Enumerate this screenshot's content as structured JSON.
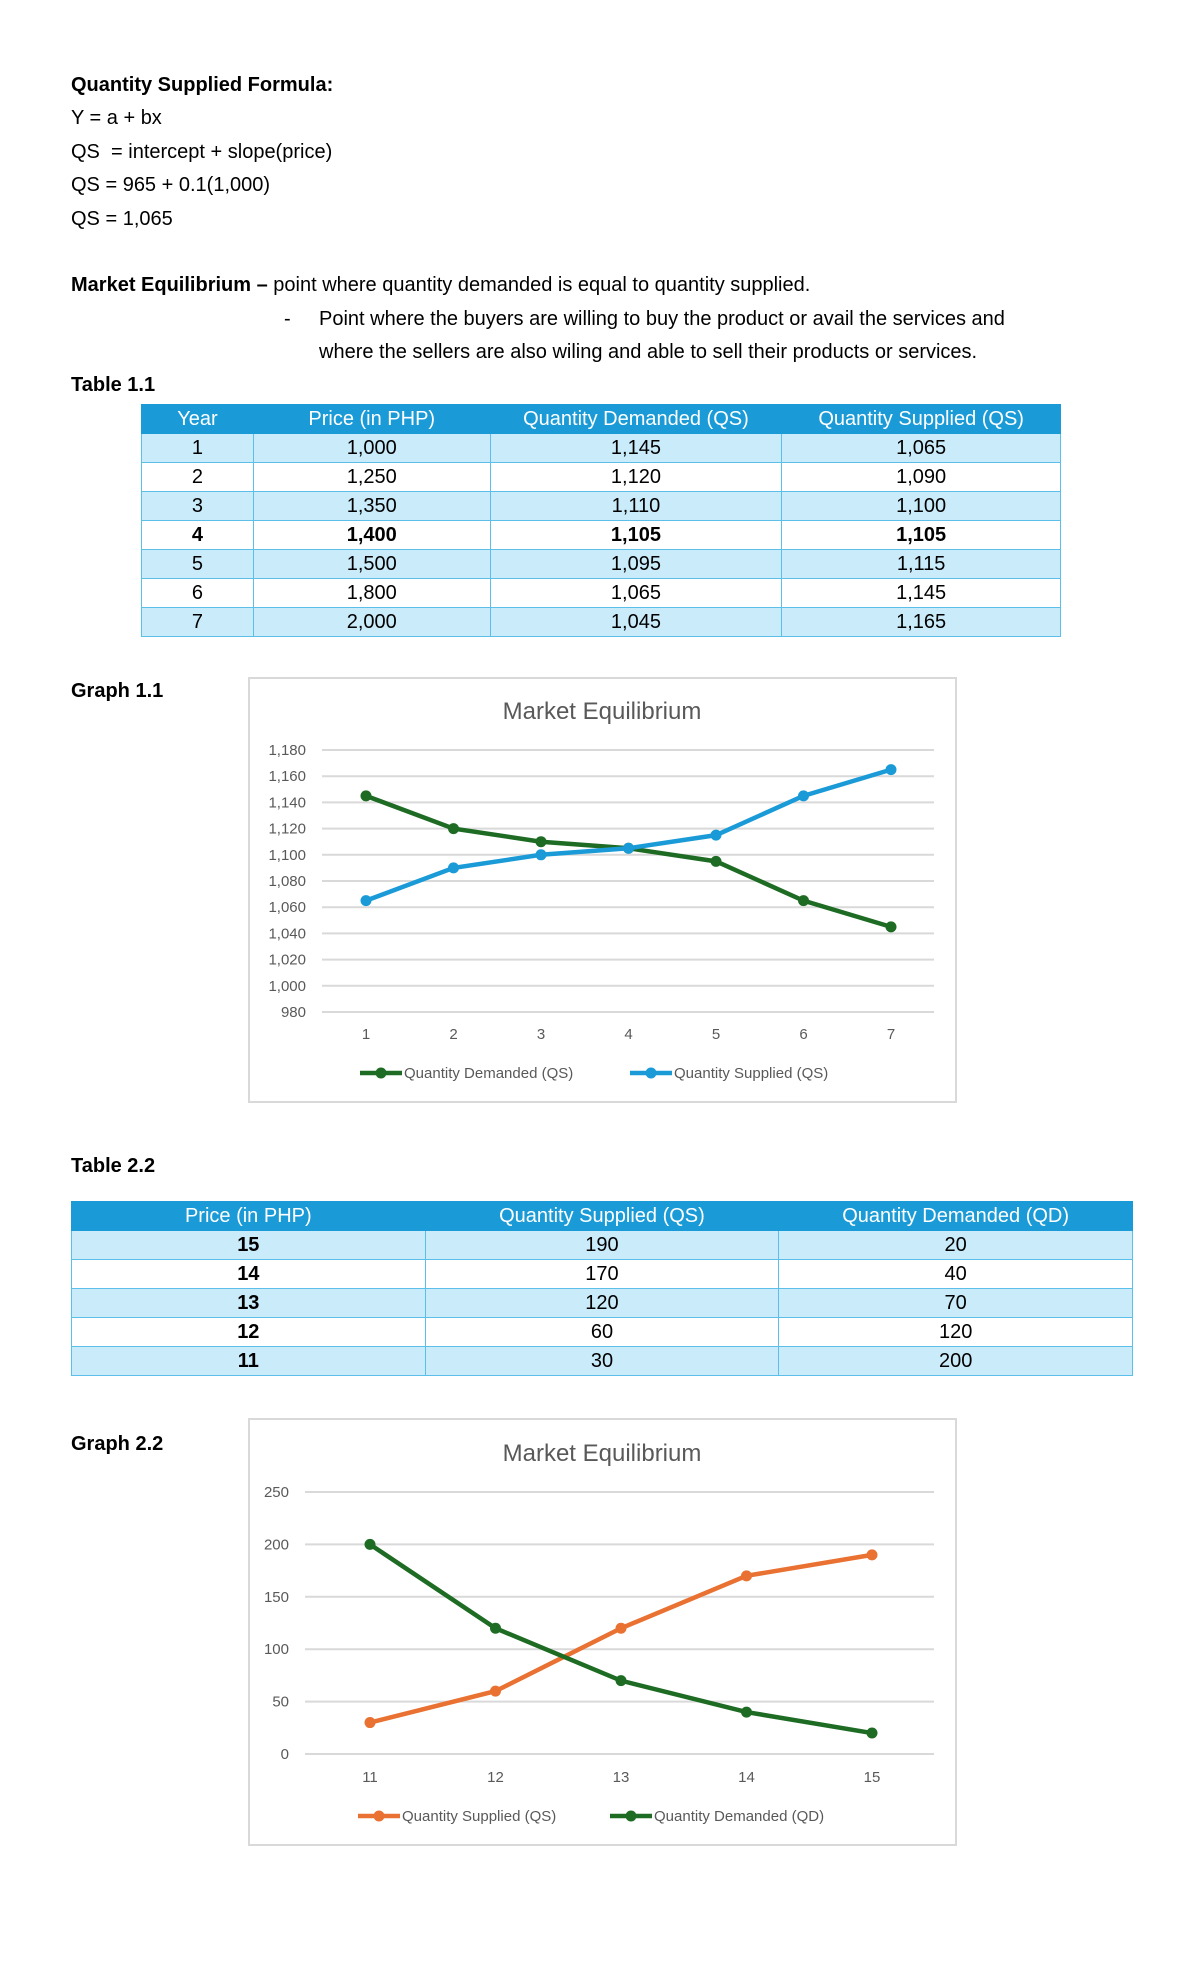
{
  "formula": {
    "heading": "Quantity Supplied Formula:",
    "lines": [
      "Y = a + bx",
      "QS  = intercept + slope(price)",
      "QS = 965 + 0.1(1,000)",
      "QS = 1,065"
    ]
  },
  "equilibrium": {
    "term": "Market Equilibrium –",
    "definition": " point where quantity demanded is equal to quantity supplied.",
    "bullet": "-",
    "bullet_line1": "Point where the buyers are willing to buy the product or avail the services and",
    "bullet_line2": "where the sellers are also wiling and able to sell their products or services."
  },
  "table1": {
    "label": "Table 1.1",
    "headers": [
      "Year",
      "Price (in PHP)",
      "Quantity Demanded (QS)",
      "Quantity Supplied (QS)"
    ],
    "rows": [
      [
        "1",
        "1,000",
        "1,145",
        "1,065"
      ],
      [
        "2",
        "1,250",
        "1,120",
        "1,090"
      ],
      [
        "3",
        "1,350",
        "1,110",
        "1,100"
      ],
      [
        "4",
        "1,400",
        "1,105",
        "1,105"
      ],
      [
        "5",
        "1,500",
        "1,095",
        "1,115"
      ],
      [
        "6",
        "1,800",
        "1,065",
        "1,145"
      ],
      [
        "7",
        "2,000",
        "1,045",
        "1,165"
      ]
    ],
    "bold_row": 3
  },
  "graph1_label": "Graph 1.1",
  "table2": {
    "label": "Table 2.2",
    "headers": [
      "Price (in PHP)",
      "Quantity Supplied (QS)",
      "Quantity Demanded (QD)"
    ],
    "rows": [
      [
        "15",
        "190",
        "20"
      ],
      [
        "14",
        "170",
        "40"
      ],
      [
        "13",
        "120",
        "70"
      ],
      [
        "12",
        "60",
        "120"
      ],
      [
        "11",
        "30",
        "200"
      ]
    ]
  },
  "graph2_label": "Graph 2.2",
  "chart_data": [
    {
      "type": "line",
      "title": "Market Equilibrium",
      "categories": [
        "1",
        "2",
        "3",
        "4",
        "5",
        "6",
        "7"
      ],
      "ylim": [
        980,
        1180
      ],
      "yticks": [
        980,
        1000,
        1020,
        1040,
        1060,
        1080,
        1100,
        1120,
        1140,
        1160,
        1180
      ],
      "ytick_labels": [
        "980",
        "1,000",
        "1,020",
        "1,040",
        "1,060",
        "1,080",
        "1,100",
        "1,120",
        "1,140",
        "1,160",
        "1,180"
      ],
      "grid": true,
      "legend": "bottom",
      "series": [
        {
          "name": "Quantity Demanded (QS)",
          "color": "#1e6b24",
          "values": [
            1145,
            1120,
            1110,
            1105,
            1095,
            1065,
            1045
          ]
        },
        {
          "name": "Quantity Supplied (QS)",
          "color": "#1a9bd7",
          "values": [
            1065,
            1090,
            1100,
            1105,
            1115,
            1145,
            1165
          ]
        }
      ]
    },
    {
      "type": "line",
      "title": "Market Equilibrium",
      "categories": [
        "11",
        "12",
        "13",
        "14",
        "15"
      ],
      "ylim": [
        0,
        250
      ],
      "yticks": [
        0,
        50,
        100,
        150,
        200,
        250
      ],
      "ytick_labels": [
        "0",
        "50",
        "100",
        "150",
        "200",
        "250"
      ],
      "grid": true,
      "legend": "bottom",
      "series": [
        {
          "name": "Quantity Supplied (QS)",
          "color": "#e97132",
          "values": [
            30,
            60,
            120,
            170,
            190
          ]
        },
        {
          "name": "Quantity Demanded (QD)",
          "color": "#1e6b24",
          "values": [
            200,
            120,
            70,
            40,
            20
          ]
        }
      ]
    }
  ]
}
